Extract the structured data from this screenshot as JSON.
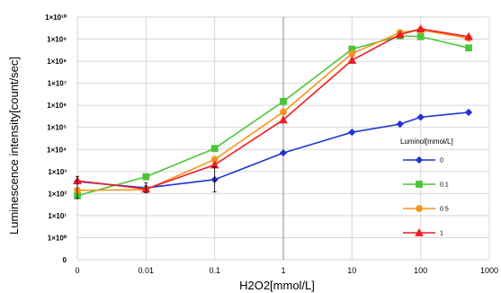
{
  "chart_data": {
    "type": "line",
    "title": "",
    "xlabel": "H2O2[mmol/L]",
    "ylabel": "Luminescence intensity[count/sec]",
    "x": [
      "0",
      "0.01",
      "0.1",
      "1",
      "10",
      "50",
      "100",
      "500"
    ],
    "x_tick_labels": [
      "0",
      "0.01",
      "0.1",
      "1",
      "10",
      "100",
      "1000"
    ],
    "y_tick_labels": [
      "0",
      "1×10⁰",
      "1×10¹",
      "1×10²",
      "1×10³",
      "1×10⁴",
      "1×10⁵",
      "1×10⁶",
      "1×10⁷",
      "1×10⁸",
      "1×10⁹",
      "1×10¹⁰"
    ],
    "y_scale": "log",
    "grid": true,
    "legend_title": "Luminol[mmol/L]",
    "legend_position": "right",
    "series": [
      {
        "name": "0",
        "color": "#1f33d6",
        "marker": "diamond",
        "values": [
          350,
          180,
          430,
          7000,
          60000,
          140000,
          290000,
          480000
        ]
      },
      {
        "name": "0.1",
        "color": "#4cc43a",
        "marker": "square",
        "values": [
          80,
          580,
          11000,
          1500000,
          350000000,
          1400000000,
          1300000000,
          400000000
        ]
      },
      {
        "name": "0.5",
        "color": "#f7941d",
        "marker": "circle",
        "values": [
          140,
          150,
          3500,
          500000,
          220000000,
          2000000000,
          2600000000,
          1100000000
        ]
      },
      {
        "name": "1",
        "color": "#ee1c24",
        "marker": "triangle",
        "values": [
          380,
          160,
          2000,
          220000,
          110000000,
          1600000000,
          2900000000,
          1300000000
        ]
      }
    ]
  }
}
